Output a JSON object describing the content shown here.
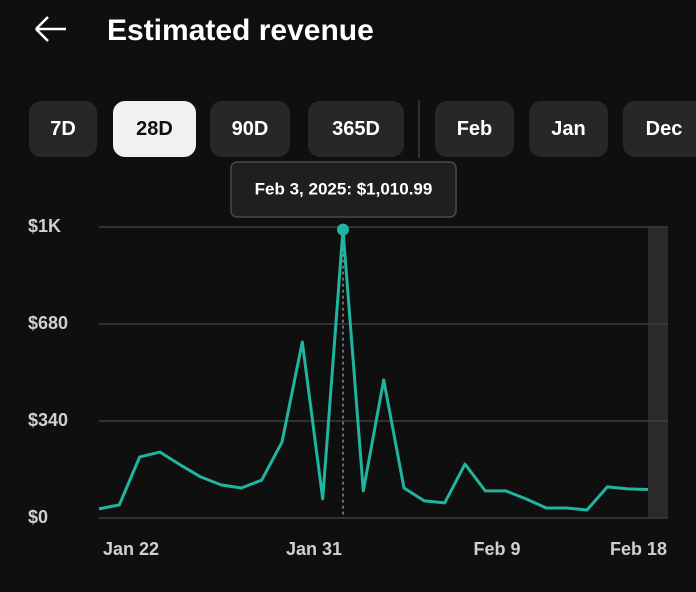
{
  "header": {
    "title": "Estimated revenue"
  },
  "tabs": [
    "7D",
    "28D",
    "90D",
    "365D",
    "Feb",
    "Jan",
    "Dec"
  ],
  "selected_tab": 1,
  "chart_data": {
    "type": "line",
    "categories": [
      "Jan 22",
      null,
      null,
      null,
      null,
      null,
      null,
      null,
      null,
      "Jan 31",
      null,
      null,
      null,
      null,
      null,
      null,
      null,
      null,
      "Feb 9",
      null,
      null,
      null,
      null,
      null,
      null,
      null,
      null,
      "Feb 18"
    ],
    "values": [
      32,
      46,
      214,
      231,
      186,
      144,
      116,
      105,
      133,
      266,
      617,
      67,
      1010.99,
      95,
      484,
      105,
      60,
      53,
      189,
      95,
      95,
      67,
      35,
      35,
      28,
      109,
      102,
      100
    ],
    "color": "#1fb5a0",
    "ylim": [
      0,
      1020
    ],
    "yticks": [
      {
        "value": 0,
        "label": "$0"
      },
      {
        "value": 340,
        "label": "$340"
      },
      {
        "value": 680,
        "label": "$680"
      },
      {
        "value": 1020,
        "label": "$1K"
      }
    ],
    "grid": true,
    "highlight_index": 12,
    "tooltip": "Feb 3, 2025: $1,010.99"
  }
}
